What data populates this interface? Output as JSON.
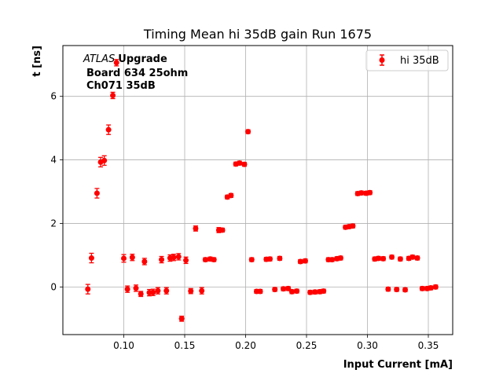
{
  "chart_data": {
    "type": "scatter",
    "title": "Timing Mean hi 35dB gain Run 1675",
    "xlabel": "Input Current [mA]",
    "ylabel": "t [ns]",
    "xlim": [
      0.05,
      0.37
    ],
    "ylim": [
      -1.5,
      7.6
    ],
    "xticks": [
      0.1,
      0.15,
      0.2,
      0.25,
      0.3,
      0.35
    ],
    "xtick_labels": [
      "0.10",
      "0.15",
      "0.20",
      "0.25",
      "0.30",
      "0.35"
    ],
    "yticks": [
      0,
      2,
      4,
      6
    ],
    "ytick_labels": [
      "0",
      "2",
      "4",
      "6"
    ],
    "grid": true,
    "legend_position": "top-right",
    "annotation": {
      "atlas": "ATLAS",
      "line1": "Upgrade",
      "line2": "Board 634 25ohm",
      "line3": "Ch071 35dB"
    },
    "series": [
      {
        "name": "hi 35dB",
        "color": "#ff0000",
        "marker": "circle",
        "points": [
          {
            "x": 0.0705,
            "y": -0.07,
            "err": 0.15
          },
          {
            "x": 0.0735,
            "y": 0.91,
            "err": 0.15
          },
          {
            "x": 0.078,
            "y": 2.95,
            "err": 0.15
          },
          {
            "x": 0.081,
            "y": 3.93,
            "err": 0.15
          },
          {
            "x": 0.084,
            "y": 3.98,
            "err": 0.15
          },
          {
            "x": 0.0875,
            "y": 4.95,
            "err": 0.15
          },
          {
            "x": 0.091,
            "y": 6.03,
            "err": 0.1
          },
          {
            "x": 0.094,
            "y": 7.06,
            "err": 0.1
          },
          {
            "x": 0.1,
            "y": 0.9,
            "err": 0.12
          },
          {
            "x": 0.103,
            "y": -0.07,
            "err": 0.1
          },
          {
            "x": 0.107,
            "y": 0.93,
            "err": 0.1
          },
          {
            "x": 0.11,
            "y": -0.04,
            "err": 0.1
          },
          {
            "x": 0.114,
            "y": -0.22,
            "err": 0.08
          },
          {
            "x": 0.117,
            "y": 0.8,
            "err": 0.1
          },
          {
            "x": 0.121,
            "y": -0.18,
            "err": 0.1
          },
          {
            "x": 0.124,
            "y": -0.17,
            "err": 0.1
          },
          {
            "x": 0.128,
            "y": -0.12,
            "err": 0.1
          },
          {
            "x": 0.131,
            "y": 0.86,
            "err": 0.1
          },
          {
            "x": 0.135,
            "y": -0.12,
            "err": 0.1
          },
          {
            "x": 0.138,
            "y": 0.91,
            "err": 0.1
          },
          {
            "x": 0.141,
            "y": 0.93,
            "err": 0.1
          },
          {
            "x": 0.145,
            "y": 0.95,
            "err": 0.1
          },
          {
            "x": 0.1475,
            "y": -1.0,
            "err": 0.08
          },
          {
            "x": 0.151,
            "y": 0.84,
            "err": 0.1
          },
          {
            "x": 0.155,
            "y": -0.13,
            "err": 0.08
          },
          {
            "x": 0.159,
            "y": 1.84,
            "err": 0.08
          },
          {
            "x": 0.164,
            "y": -0.12,
            "err": 0.1
          },
          {
            "x": 0.167,
            "y": 0.86,
            "err": 0.06
          },
          {
            "x": 0.171,
            "y": 0.88,
            "err": 0.06
          },
          {
            "x": 0.174,
            "y": 0.86,
            "err": 0.06
          },
          {
            "x": 0.178,
            "y": 1.79,
            "err": 0.08
          },
          {
            "x": 0.181,
            "y": 1.79,
            "err": 0.06
          },
          {
            "x": 0.185,
            "y": 2.83,
            "err": 0.06
          },
          {
            "x": 0.188,
            "y": 2.88,
            "err": 0.06
          },
          {
            "x": 0.192,
            "y": 3.87,
            "err": 0.06
          },
          {
            "x": 0.195,
            "y": 3.9,
            "err": 0.06
          },
          {
            "x": 0.199,
            "y": 3.86,
            "err": 0.06
          },
          {
            "x": 0.202,
            "y": 4.89,
            "err": 0.06
          },
          {
            "x": 0.205,
            "y": 0.86,
            "err": 0.06
          },
          {
            "x": 0.209,
            "y": -0.14,
            "err": 0.06
          },
          {
            "x": 0.212,
            "y": -0.14,
            "err": 0.06
          },
          {
            "x": 0.217,
            "y": 0.87,
            "err": 0.06
          },
          {
            "x": 0.22,
            "y": 0.88,
            "err": 0.06
          },
          {
            "x": 0.224,
            "y": -0.08,
            "err": 0.06
          },
          {
            "x": 0.228,
            "y": 0.9,
            "err": 0.06
          },
          {
            "x": 0.231,
            "y": -0.06,
            "err": 0.06
          },
          {
            "x": 0.235,
            "y": -0.05,
            "err": 0.06
          },
          {
            "x": 0.238,
            "y": -0.15,
            "err": 0.06
          },
          {
            "x": 0.242,
            "y": -0.13,
            "err": 0.06
          },
          {
            "x": 0.245,
            "y": 0.8,
            "err": 0.06
          },
          {
            "x": 0.249,
            "y": 0.82,
            "err": 0.06
          },
          {
            "x": 0.253,
            "y": -0.17,
            "err": 0.06
          },
          {
            "x": 0.257,
            "y": -0.16,
            "err": 0.06
          },
          {
            "x": 0.261,
            "y": -0.15,
            "err": 0.06
          },
          {
            "x": 0.264,
            "y": -0.13,
            "err": 0.06
          },
          {
            "x": 0.268,
            "y": 0.86,
            "err": 0.06
          },
          {
            "x": 0.271,
            "y": 0.86,
            "err": 0.06
          },
          {
            "x": 0.275,
            "y": 0.89,
            "err": 0.06
          },
          {
            "x": 0.278,
            "y": 0.91,
            "err": 0.06
          },
          {
            "x": 0.282,
            "y": 1.88,
            "err": 0.06
          },
          {
            "x": 0.285,
            "y": 1.9,
            "err": 0.06
          },
          {
            "x": 0.288,
            "y": 1.92,
            "err": 0.06
          },
          {
            "x": 0.292,
            "y": 2.94,
            "err": 0.06
          },
          {
            "x": 0.295,
            "y": 2.96,
            "err": 0.06
          },
          {
            "x": 0.299,
            "y": 2.95,
            "err": 0.06
          },
          {
            "x": 0.302,
            "y": 2.97,
            "err": 0.06
          },
          {
            "x": 0.306,
            "y": 0.88,
            "err": 0.06
          },
          {
            "x": 0.309,
            "y": 0.9,
            "err": 0.06
          },
          {
            "x": 0.313,
            "y": 0.89,
            "err": 0.06
          },
          {
            "x": 0.317,
            "y": -0.07,
            "err": 0.06
          },
          {
            "x": 0.32,
            "y": 0.94,
            "err": 0.06
          },
          {
            "x": 0.324,
            "y": -0.08,
            "err": 0.06
          },
          {
            "x": 0.327,
            "y": 0.88,
            "err": 0.06
          },
          {
            "x": 0.331,
            "y": -0.09,
            "err": 0.06
          },
          {
            "x": 0.334,
            "y": 0.9,
            "err": 0.06
          },
          {
            "x": 0.337,
            "y": 0.94,
            "err": 0.06
          },
          {
            "x": 0.341,
            "y": 0.91,
            "err": 0.06
          },
          {
            "x": 0.345,
            "y": -0.05,
            "err": 0.06
          },
          {
            "x": 0.349,
            "y": -0.05,
            "err": 0.06
          },
          {
            "x": 0.352,
            "y": -0.03,
            "err": 0.06
          },
          {
            "x": 0.356,
            "y": 0.0,
            "err": 0.06
          }
        ]
      }
    ]
  }
}
